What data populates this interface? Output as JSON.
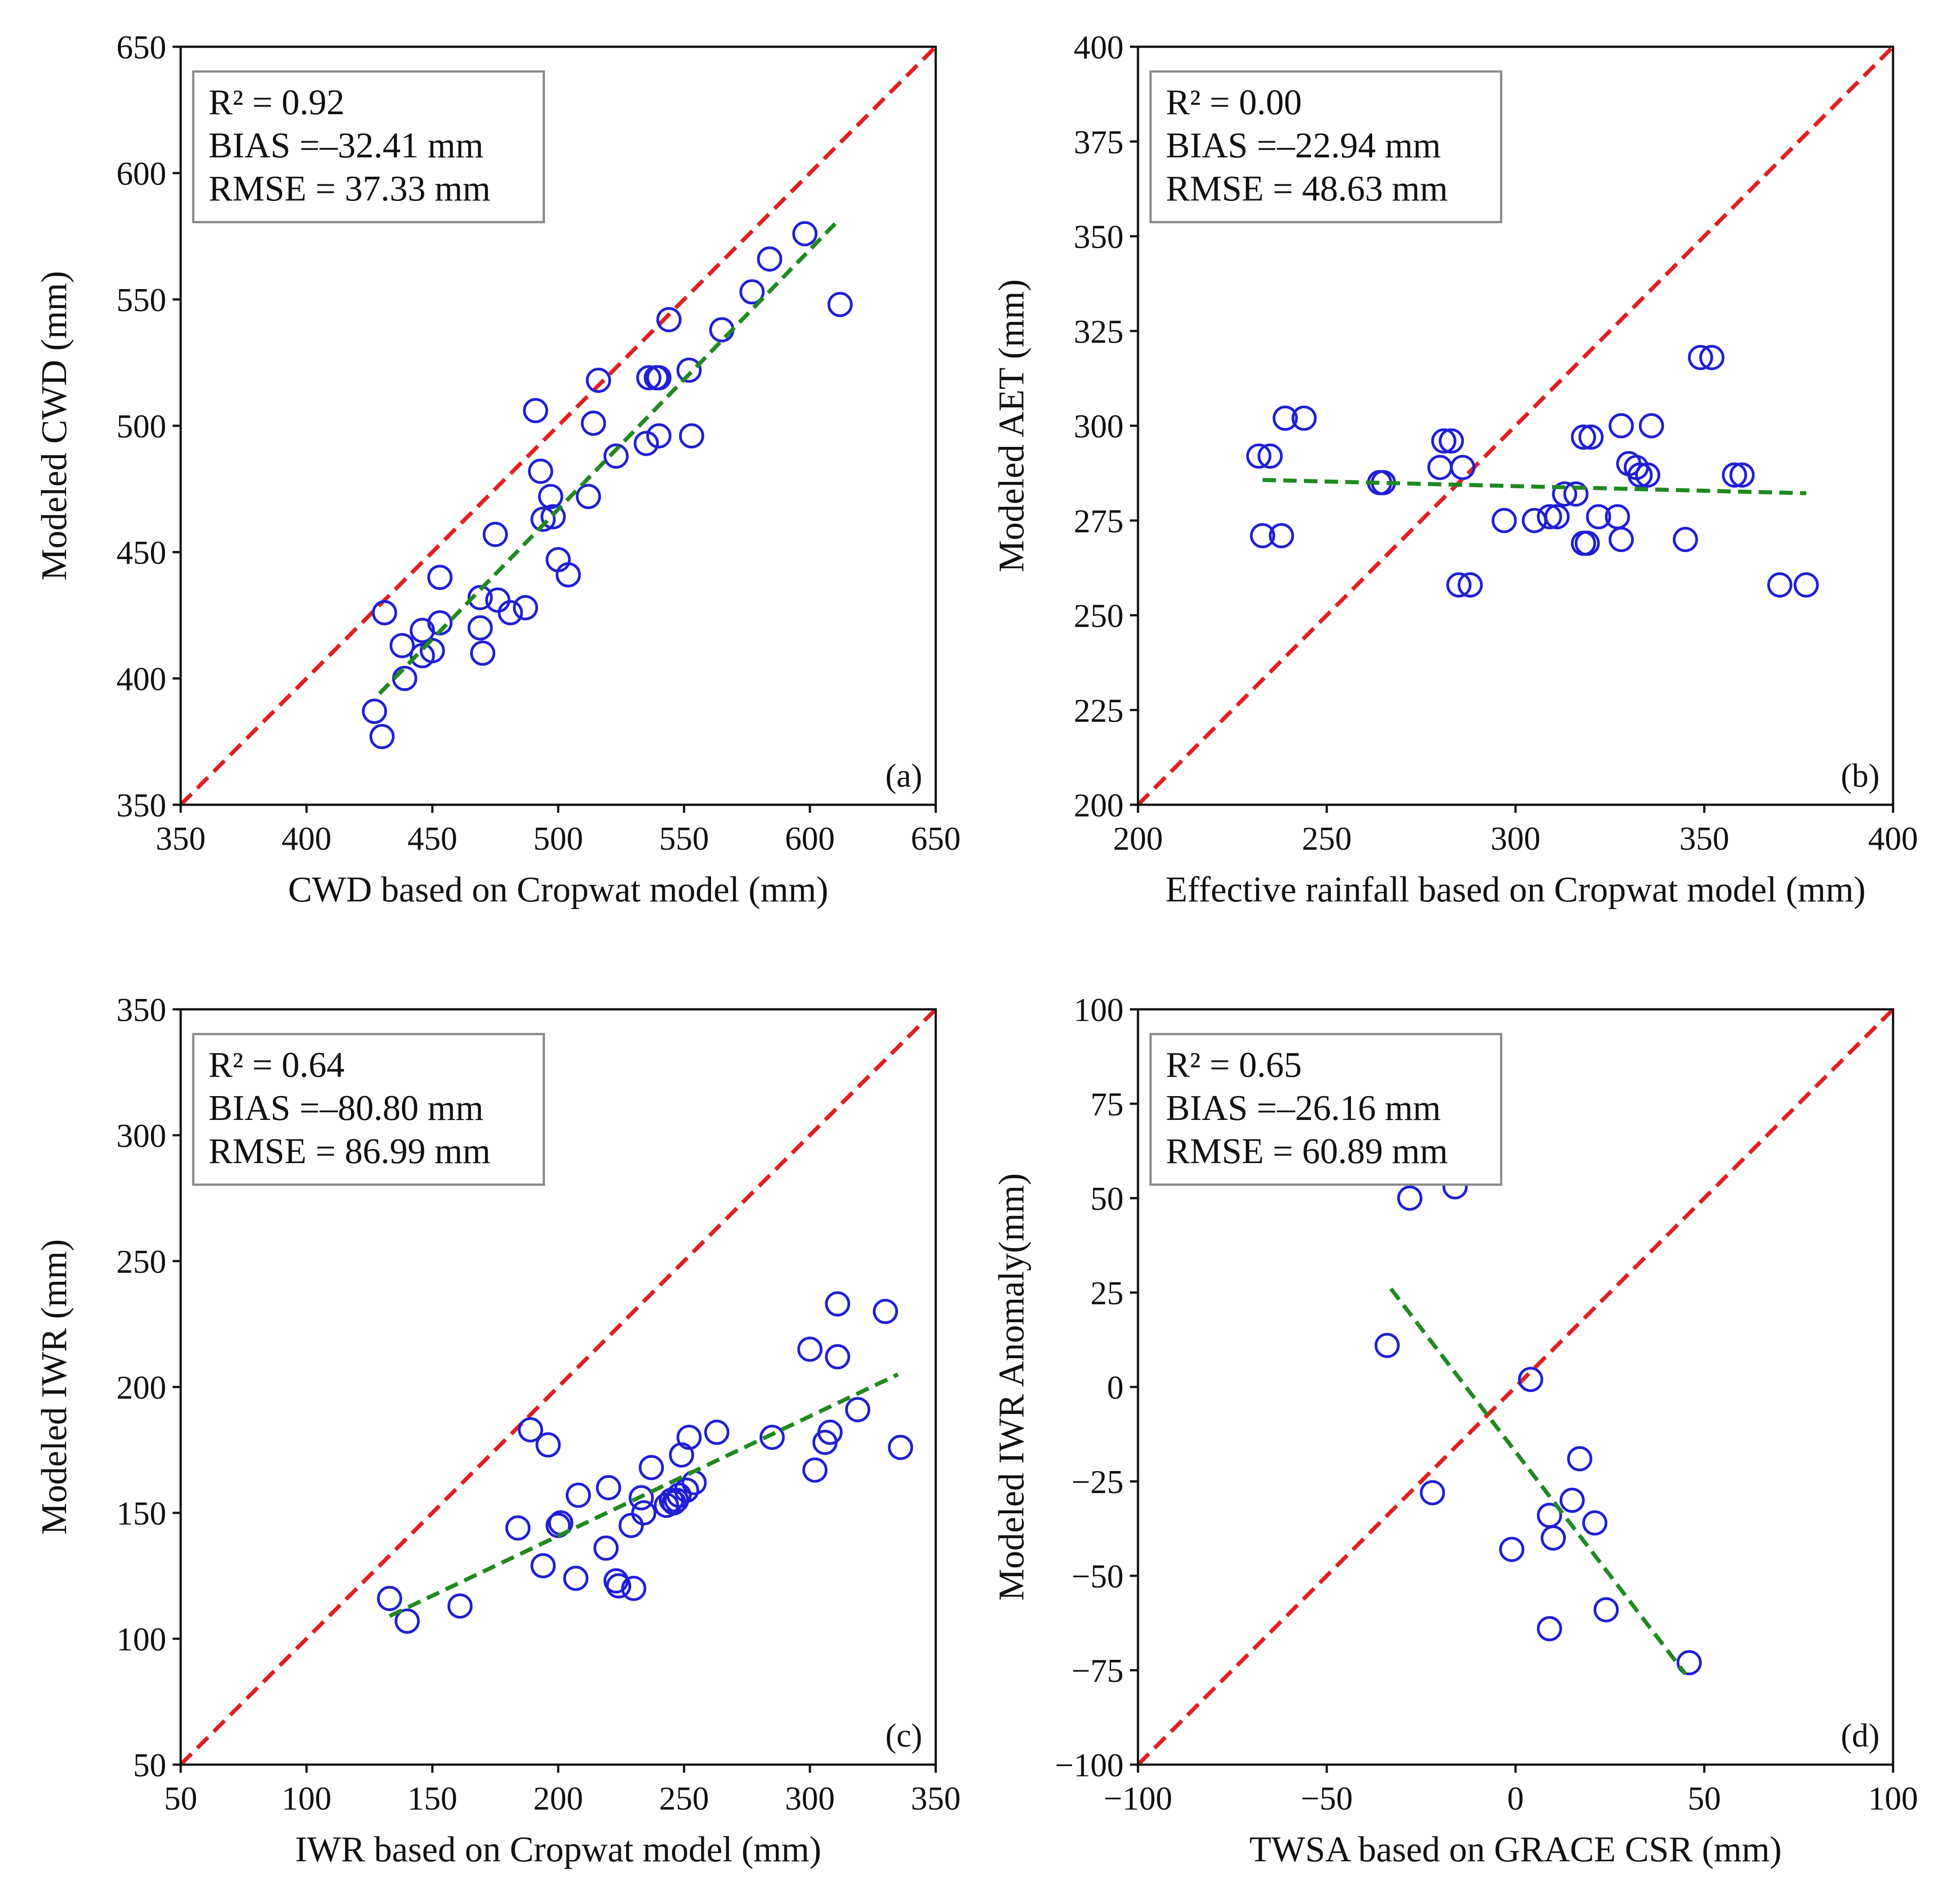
{
  "colors": {
    "points": "#1f1fd6",
    "identity": "#e02020",
    "fit": "#208a20",
    "frame": "#111111",
    "legend_border": "#888888"
  },
  "chart_data": [
    {
      "type": "scatter",
      "panel_tag": "(a)",
      "xlabel": "CWD based on Cropwat model (mm)",
      "ylabel": "Modeled CWD (mm)",
      "xlim": [
        350,
        650
      ],
      "ylim": [
        350,
        650
      ],
      "xticks": [
        350,
        400,
        450,
        500,
        550,
        600,
        650
      ],
      "yticks": [
        350,
        400,
        450,
        500,
        550,
        600,
        650
      ],
      "stats": {
        "r2": "R² = 0.92",
        "bias": "BIAS =–32.41 mm",
        "rmse": "RMSE = 37.33 mm"
      },
      "legend_position": "top-left",
      "identity_line": true,
      "fit_line": {
        "x": [
          429,
          612
        ],
        "y": [
          394,
          582
        ]
      },
      "points": {
        "x": [
          427,
          430,
          431,
          438,
          439,
          446,
          450,
          446,
          453,
          453,
          469,
          469,
          470,
          475,
          476,
          481,
          487,
          491,
          493,
          494,
          497,
          498,
          500,
          504,
          512,
          514,
          516,
          523,
          535,
          536,
          539,
          540,
          540,
          544,
          552,
          553,
          565,
          577,
          584,
          598,
          612
        ],
        "y": [
          387,
          377,
          426,
          413,
          400,
          409,
          411,
          419,
          422,
          440,
          420,
          432,
          410,
          457,
          431,
          426,
          428,
          506,
          482,
          463,
          472,
          464,
          447,
          441,
          472,
          501,
          518,
          488,
          493,
          519,
          519,
          496,
          519,
          542,
          522,
          496,
          538,
          553,
          566,
          576,
          548
        ]
      }
    },
    {
      "type": "scatter",
      "panel_tag": "(b)",
      "xlabel": "Effective rainfall based on Cropwat model (mm)",
      "ylabel": "Modeled AET (mm)",
      "xlim": [
        200,
        400
      ],
      "ylim": [
        200,
        400
      ],
      "xticks": [
        200,
        250,
        300,
        350,
        400
      ],
      "yticks": [
        200,
        225,
        250,
        275,
        300,
        325,
        350,
        375,
        400
      ],
      "stats": {
        "r2": "R² = 0.00",
        "bias": "BIAS =–22.94 mm",
        "rmse": "RMSE = 48.63 mm"
      },
      "legend_position": "top-left",
      "identity_line": true,
      "fit_line": {
        "x": [
          233,
          377
        ],
        "y": [
          285.7,
          282.2
        ]
      },
      "points": {
        "x": [
          232,
          235,
          233,
          238,
          239,
          244,
          264,
          265,
          280,
          281,
          283,
          286,
          285,
          288,
          297,
          305,
          309,
          311,
          313,
          316,
          318,
          319,
          318,
          320,
          322,
          327,
          328,
          328,
          330,
          332,
          333,
          335,
          336,
          345,
          349,
          352,
          358,
          360,
          370,
          377
        ],
        "y": [
          292,
          292,
          271,
          271,
          302,
          302,
          285,
          285,
          289,
          296,
          296,
          289,
          258,
          258,
          275,
          275,
          276,
          276,
          282,
          282,
          297,
          269,
          269,
          297,
          276,
          276,
          300,
          270,
          290,
          289,
          287,
          287,
          300,
          270,
          318,
          318,
          287,
          287,
          258,
          258
        ]
      }
    },
    {
      "type": "scatter",
      "panel_tag": "(c)",
      "xlabel": "IWR based on Cropwat model (mm)",
      "ylabel": "Modeled IWR (mm)",
      "xlim": [
        50,
        350
      ],
      "ylim": [
        50,
        350
      ],
      "xticks": [
        50,
        100,
        150,
        200,
        250,
        300,
        350
      ],
      "yticks": [
        50,
        100,
        150,
        200,
        250,
        300,
        350
      ],
      "stats": {
        "r2": "R² = 0.64",
        "bias": "BIAS =–80.80 mm",
        "rmse": "RMSE = 86.99 mm"
      },
      "legend_position": "top-left",
      "identity_line": true,
      "fit_line": {
        "x": [
          133,
          335
        ],
        "y": [
          109,
          205
        ]
      },
      "points": {
        "x": [
          133,
          140,
          161,
          184,
          189,
          194,
          196,
          200,
          201,
          207,
          208,
          219,
          220,
          223,
          224,
          229,
          230,
          233,
          234,
          237,
          243,
          245,
          246,
          247,
          248,
          249,
          251,
          252,
          254,
          263,
          285,
          300,
          302,
          306,
          308,
          311,
          311,
          319,
          330,
          336
        ],
        "y": [
          116,
          107,
          113,
          144,
          183,
          129,
          177,
          145,
          146,
          124,
          157,
          136,
          160,
          123,
          121,
          145,
          120,
          156,
          150,
          168,
          153,
          155,
          154,
          155,
          157,
          173,
          159,
          180,
          162,
          182,
          180,
          215,
          167,
          178,
          182,
          233,
          212,
          191,
          230,
          176
        ]
      }
    },
    {
      "type": "scatter",
      "panel_tag": "(d)",
      "xlabel": "TWSA based on GRACE CSR (mm)",
      "ylabel": "Modeled IWR Anomaly(mm)",
      "xlim": [
        -100,
        100
      ],
      "ylim": [
        -100,
        100
      ],
      "xticks": [
        -100,
        -50,
        0,
        50,
        100
      ],
      "xtick_labels": [
        "−100",
        "−50",
        "0",
        "50",
        "100"
      ],
      "yticks": [
        -100,
        -75,
        -50,
        -25,
        0,
        25,
        50,
        75,
        100
      ],
      "ytick_labels": [
        "−100",
        "−75",
        "−50",
        "−25",
        "0",
        "25",
        "50",
        "75",
        "100"
      ],
      "stats": {
        "r2": "R² = 0.65",
        "bias": "BIAS =–26.16 mm",
        "rmse": "RMSE = 60.89 mm"
      },
      "legend_position": "top-left",
      "identity_line": true,
      "fit_line": {
        "x": [
          -33,
          45
        ],
        "y": [
          26,
          -76
        ]
      },
      "points": {
        "x": [
          -34,
          -28,
          -16,
          -22,
          -1,
          4,
          9,
          9,
          10,
          15,
          17,
          21,
          24,
          46
        ],
        "y": [
          11,
          50,
          53,
          -28,
          -43,
          2,
          -34,
          -64,
          -40,
          -30,
          -19,
          -36,
          -59,
          -73
        ]
      }
    }
  ]
}
